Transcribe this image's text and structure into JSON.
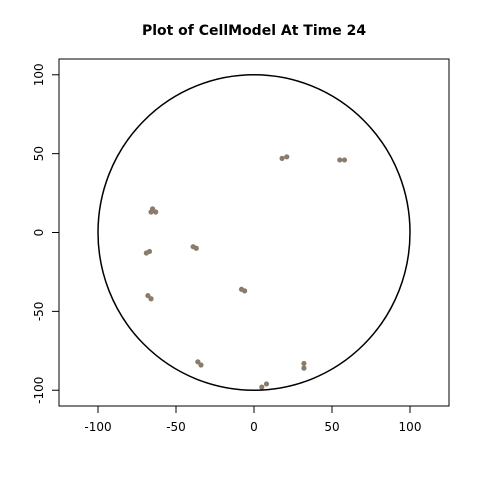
{
  "chart_data": {
    "type": "scatter",
    "title": "Plot of CellModel At Time 24",
    "xlabel": "",
    "ylabel": "",
    "xlim": [
      -125,
      125
    ],
    "ylim": [
      -110,
      110
    ],
    "x_ticks": [
      -100,
      -50,
      0,
      50,
      100
    ],
    "y_ticks": [
      -100,
      -50,
      0,
      50,
      100
    ],
    "x_tick_labels": [
      "-100",
      "-50",
      "0",
      "50",
      "100"
    ],
    "y_tick_labels": [
      "-100",
      "-50",
      "0",
      "50",
      "100"
    ],
    "boundary_circle": {
      "cx": 0,
      "cy": 0,
      "r": 100,
      "color": "#000000"
    },
    "point_color": "#8B7B6B",
    "points": [
      {
        "x": 18,
        "y": 47
      },
      {
        "x": 21,
        "y": 48
      },
      {
        "x": 55,
        "y": 46
      },
      {
        "x": 58,
        "y": 46
      },
      {
        "x": -66,
        "y": 13
      },
      {
        "x": -65,
        "y": 15
      },
      {
        "x": -63,
        "y": 13
      },
      {
        "x": -69,
        "y": -13
      },
      {
        "x": -67,
        "y": -12
      },
      {
        "x": -39,
        "y": -9
      },
      {
        "x": -37,
        "y": -10
      },
      {
        "x": -68,
        "y": -40
      },
      {
        "x": -66,
        "y": -42
      },
      {
        "x": -8,
        "y": -36
      },
      {
        "x": -6,
        "y": -37
      },
      {
        "x": -36,
        "y": -82
      },
      {
        "x": -34,
        "y": -84
      },
      {
        "x": 32,
        "y": -83
      },
      {
        "x": 32,
        "y": -86
      },
      {
        "x": 5,
        "y": -98
      },
      {
        "x": 8,
        "y": -96
      }
    ]
  }
}
